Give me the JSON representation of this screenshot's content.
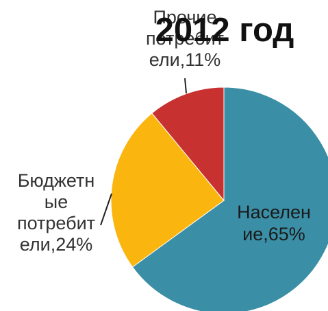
{
  "chart_data": {
    "type": "pie",
    "title": "2012 год",
    "legend": "none",
    "slices": [
      {
        "label": "Население",
        "label_lines": [
          "Населен",
          "ие,65%"
        ],
        "value": 65,
        "color": "#3A8EA5"
      },
      {
        "label": "Бюджетные потребители",
        "label_lines": [
          "Бюджетн",
          "ые",
          "потребит",
          "ели,24%"
        ],
        "value": 24,
        "color": "#FBB50F"
      },
      {
        "label": "Прочие потребители",
        "label_lines": [
          "Прочие",
          "потребит",
          "ели,11%"
        ],
        "value": 11,
        "color": "#C7312F"
      }
    ]
  }
}
